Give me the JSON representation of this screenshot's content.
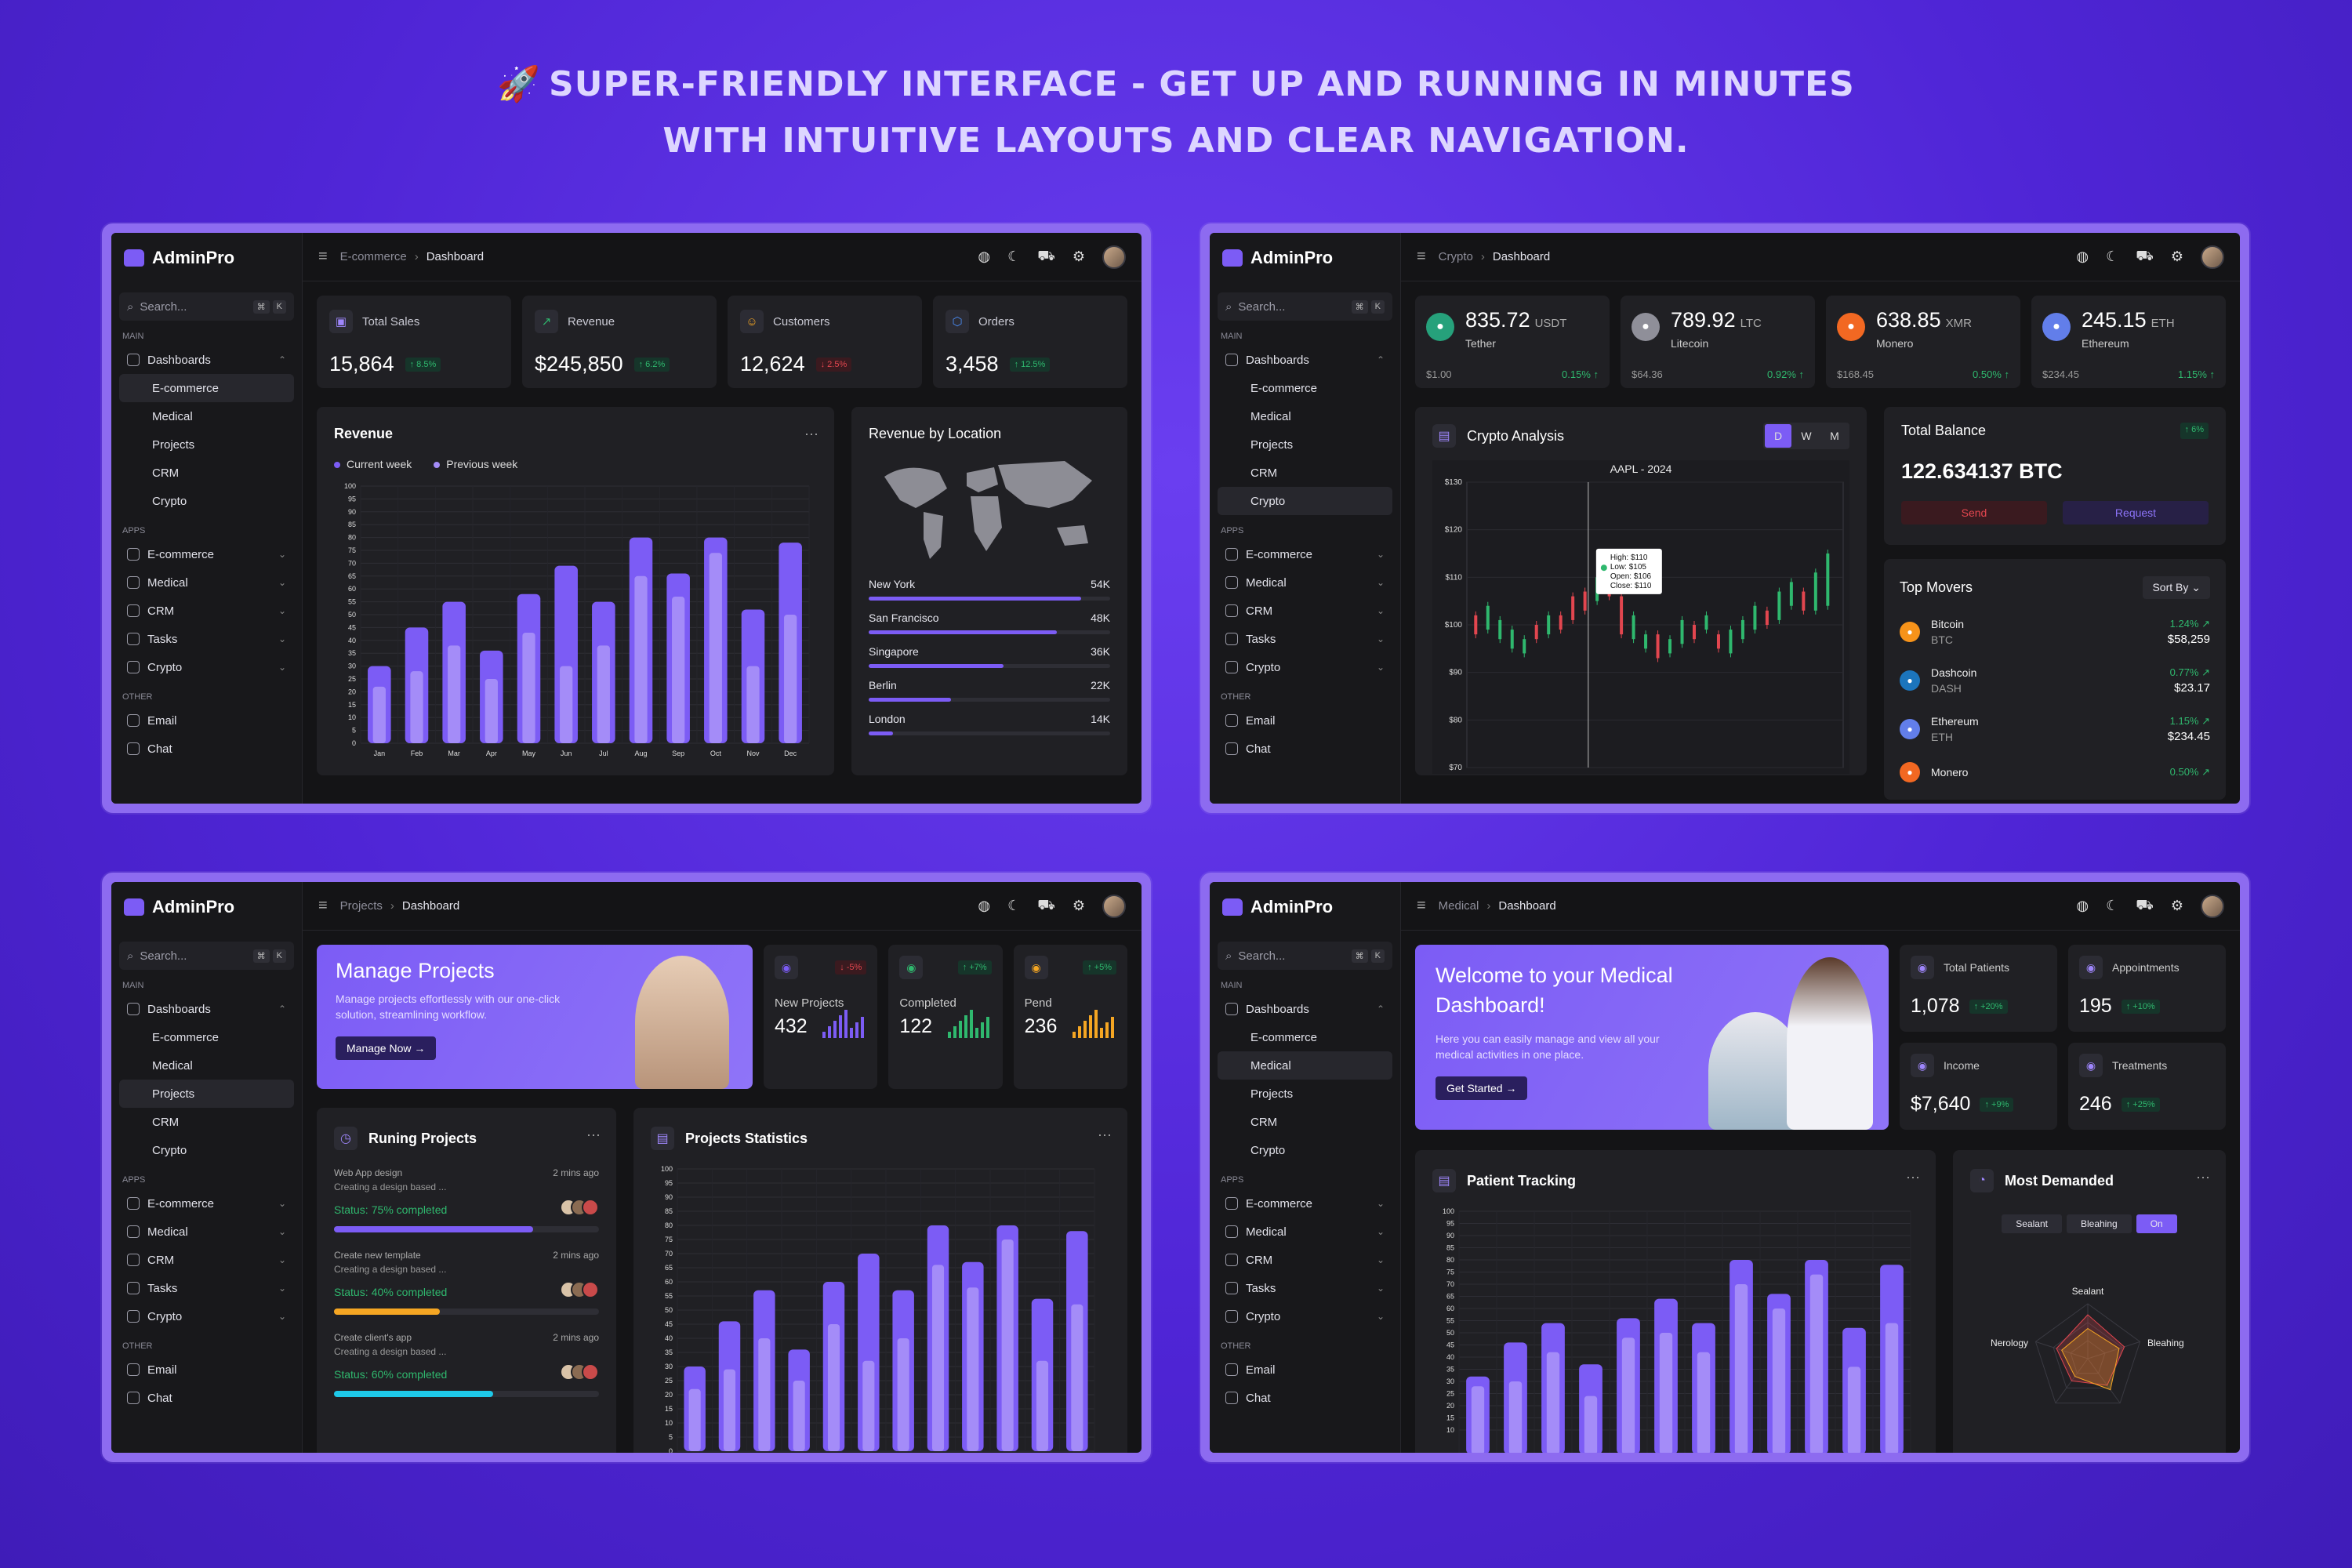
{
  "headline": {
    "line1": "SUPER-FRIENDLY INTERFACE  -  GET UP AND RUNNING IN MINUTES",
    "line2": "WITH INTUITIVE LAYOUTS AND CLEAR NAVIGATION.",
    "icon": "rocket-icon"
  },
  "common": {
    "brand": "AdminPro",
    "search_placeholder": "Search...",
    "kbd1": "⌘",
    "kbd2": "K",
    "sec_main": "MAIN",
    "sec_apps": "APPS",
    "sec_other": "OTHER",
    "dashboards": "Dashboards",
    "sub": [
      "E-commerce",
      "Medical",
      "Projects",
      "CRM",
      "Crypto"
    ],
    "apps": [
      "E-commerce",
      "Medical",
      "CRM",
      "Tasks",
      "Crypto"
    ],
    "other": [
      "Email",
      "Chat"
    ],
    "dashboard_crumb": "Dashboard",
    "colors": {
      "accent": "#7c5cf5",
      "up": "#2fb86e",
      "down": "#e2464f",
      "background": "#141416"
    }
  },
  "ecommerce": {
    "crumb": "E-commerce",
    "stats": [
      {
        "label": "Total Sales",
        "value": "15,864",
        "delta": "↑ 8.5%",
        "dir": "up"
      },
      {
        "label": "Revenue",
        "value": "$245,850",
        "delta": "↑ 6.2%",
        "dir": "up"
      },
      {
        "label": "Customers",
        "value": "12,624",
        "delta": "↓ 2.5%",
        "dir": "dn"
      },
      {
        "label": "Orders",
        "value": "3,458",
        "delta": "↑ 12.5%",
        "dir": "up"
      }
    ],
    "revenue_title": "Revenue",
    "legend_current": "Current week",
    "legend_previous": "Previous week",
    "location_title": "Revenue by Location",
    "locations": [
      {
        "name": "New York",
        "value": "54K",
        "pct": 0.88
      },
      {
        "name": "San Francisco",
        "value": "48K",
        "pct": 0.78
      },
      {
        "name": "Singapore",
        "value": "36K",
        "pct": 0.56
      },
      {
        "name": "Berlin",
        "value": "22K",
        "pct": 0.34
      },
      {
        "name": "London",
        "value": "14K",
        "pct": 0.1
      }
    ]
  },
  "crypto": {
    "crumb": "Crypto",
    "coins": [
      {
        "price": "835.72",
        "unit": "USDT",
        "name": "Tether",
        "low": "$1.00",
        "change": "0.15% ↑",
        "color": "#26a17b",
        "icon": "tether-icon"
      },
      {
        "price": "789.92",
        "unit": "LTC",
        "name": "Litecoin",
        "low": "$64.36",
        "change": "0.92% ↑",
        "color": "#8f8f99",
        "icon": "litecoin-icon"
      },
      {
        "price": "638.85",
        "unit": "XMR",
        "name": "Monero",
        "low": "$168.45",
        "change": "0.50% ↑",
        "color": "#f26822",
        "icon": "monero-icon"
      },
      {
        "price": "245.15",
        "unit": "ETH",
        "name": "Ethereum",
        "low": "$234.45",
        "change": "1.15% ↑",
        "color": "#627eea",
        "icon": "ethereum-icon"
      }
    ],
    "analysis_title": "Crypto Analysis",
    "seg": [
      "D",
      "W",
      "M"
    ],
    "chart_title": "AAPL - 2024",
    "tooltip": [
      "High: $110",
      "Low: $105",
      "Open: $106",
      "Close: $110"
    ],
    "balance_title": "Total Balance",
    "balance_delta": "↑ 6%",
    "balance_value": "122.634137 BTC",
    "send": "Send",
    "request": "Request",
    "movers_title": "Top Movers",
    "sort": "Sort By",
    "movers": [
      {
        "name": "Bitcoin",
        "sym": "BTC",
        "change": "1.24% ↗",
        "price": "$58,259",
        "color": "#f7931a"
      },
      {
        "name": "Dashcoin",
        "sym": "DASH",
        "change": "0.77% ↗",
        "price": "$23.17",
        "color": "#1c75bc"
      },
      {
        "name": "Ethereum",
        "sym": "ETH",
        "change": "1.15% ↗",
        "price": "$234.45",
        "color": "#627eea"
      },
      {
        "name": "Monero",
        "sym": "",
        "change": "0.50% ↗",
        "price": "",
        "color": "#f26822"
      }
    ]
  },
  "projects": {
    "crumb": "Projects",
    "hero_title": "Manage Projects",
    "hero_text": "Manage projects effortlessly with our  one-click solution, streamlining workflow.",
    "hero_btn": "Manage Now",
    "minis": [
      {
        "label": "New Projects",
        "value": "432",
        "delta": "↓ -5%",
        "dir": "dn",
        "color": "#7c5cf5"
      },
      {
        "label": "Completed",
        "value": "122",
        "delta": "↑ +7%",
        "dir": "up",
        "color": "#2fb86e"
      },
      {
        "label": "Pend",
        "value": "236",
        "delta": "↑ +5%",
        "dir": "up",
        "color": "#f5a623"
      }
    ],
    "running_title": "Runing Projects",
    "running": [
      {
        "title": "Web App design",
        "time": "2 mins ago",
        "desc": "Creating a design based ...",
        "status": "75% completed",
        "pct": 0.75,
        "color": "#7c5cf5"
      },
      {
        "title": "Create new template",
        "time": "2 mins ago",
        "desc": "Creating a design based ...",
        "status": "40% completed",
        "pct": 0.4,
        "color": "#f5a623"
      },
      {
        "title": "Create client's app",
        "time": "2 mins ago",
        "desc": "Creating a design based ...",
        "status": "60% completed",
        "pct": 0.6,
        "color": "#1ec8e8"
      }
    ],
    "status_label": "Status:",
    "stats_title": "Projects Statistics"
  },
  "medical": {
    "crumb": "Medical",
    "hero_title": "Welcome to your Medical Dashboard!",
    "hero_text": "Here you can easily manage and view all your medical activities in one place.",
    "hero_btn": "Get Started",
    "stats": [
      {
        "label": "Total Patients",
        "value": "1,078",
        "delta": "↑ +20%"
      },
      {
        "label": "Appointments",
        "value": "195",
        "delta": "↑ +10%"
      },
      {
        "label": "Income",
        "value": "$7,640",
        "delta": "↑ +9%"
      },
      {
        "label": "Treatments",
        "value": "246",
        "delta": "↑ +25%"
      }
    ],
    "tracking_title": "Patient Tracking",
    "demand_title": "Most Demanded",
    "demand_tabs": [
      "Sealant",
      "Bleahing",
      "On"
    ],
    "radar_labels": [
      "Sealant",
      "Bleahing",
      "Nerology"
    ]
  },
  "chart_data": [
    {
      "type": "bar",
      "title": "Revenue",
      "categories": [
        "Jan",
        "Feb",
        "Mar",
        "Apr",
        "May",
        "Jun",
        "Jul",
        "Aug",
        "Sep",
        "Oct",
        "Nov",
        "Dec"
      ],
      "series": [
        {
          "name": "Current week",
          "values": [
            30,
            45,
            55,
            36,
            58,
            69,
            55,
            80,
            66,
            80,
            52,
            78
          ]
        },
        {
          "name": "Previous week",
          "values": [
            22,
            28,
            38,
            25,
            43,
            30,
            38,
            65,
            57,
            74,
            30,
            50
          ]
        }
      ],
      "ylim": [
        0,
        100
      ],
      "yticks": [
        0,
        5,
        10,
        15,
        20,
        25,
        30,
        35,
        40,
        45,
        50,
        55,
        60,
        65,
        70,
        75,
        80,
        85,
        90,
        95,
        100
      ]
    },
    {
      "type": "candlestick",
      "title": "AAPL - 2024",
      "yticks": [
        "$70",
        "$80",
        "$90",
        "$100",
        "$110",
        "$120",
        "$130"
      ],
      "ylim": [
        70,
        130
      ],
      "candles": [
        [
          102,
          98
        ],
        [
          99,
          104
        ],
        [
          97,
          101
        ],
        [
          95,
          99
        ],
        [
          94,
          97
        ],
        [
          100,
          97
        ],
        [
          98,
          102
        ],
        [
          102,
          99
        ],
        [
          106,
          101
        ],
        [
          107,
          103
        ],
        [
          105,
          110
        ],
        [
          110,
          106
        ],
        [
          106,
          98
        ],
        [
          97,
          102
        ],
        [
          95,
          98
        ],
        [
          98,
          93
        ],
        [
          94,
          97
        ],
        [
          96,
          101
        ],
        [
          100,
          97
        ],
        [
          99,
          102
        ],
        [
          98,
          95
        ],
        [
          94,
          99
        ],
        [
          97,
          101
        ],
        [
          99,
          104
        ],
        [
          103,
          100
        ],
        [
          101,
          107
        ],
        [
          104,
          109
        ],
        [
          107,
          103
        ],
        [
          103,
          111
        ],
        [
          104,
          115
        ]
      ]
    },
    {
      "type": "bar",
      "title": "Projects Statistics",
      "series": [
        {
          "name": "",
          "values": [
            30,
            46,
            57,
            36,
            60,
            70,
            57,
            80,
            67,
            80,
            54,
            78
          ]
        },
        {
          "name": "",
          "values": [
            22,
            29,
            40,
            25,
            45,
            32,
            40,
            66,
            58,
            75,
            32,
            52
          ]
        }
      ],
      "ylim": [
        0,
        100
      ],
      "yticks": [
        0,
        5,
        10,
        15,
        20,
        25,
        30,
        35,
        40,
        45,
        50,
        55,
        60,
        65,
        70,
        75,
        80,
        85,
        90,
        95,
        100
      ]
    },
    {
      "type": "bar",
      "title": "Patient Tracking",
      "series": [
        {
          "name": "",
          "values": [
            32,
            46,
            54,
            37,
            56,
            64,
            54,
            80,
            66,
            80,
            52,
            78
          ]
        },
        {
          "name": "",
          "values": [
            28,
            30,
            42,
            24,
            48,
            50,
            42,
            70,
            60,
            74,
            36,
            54
          ]
        }
      ],
      "ylim": [
        0,
        100
      ],
      "yticks": [
        10,
        15,
        20,
        25,
        30,
        35,
        40,
        45,
        50,
        55,
        60,
        65,
        70,
        75,
        80,
        85,
        90,
        95,
        100
      ]
    },
    {
      "type": "radar",
      "title": "Most Demanded",
      "axes": [
        "Sealant",
        "Bleahing",
        "",
        "",
        "Nerology"
      ],
      "series": [
        {
          "name": "",
          "values": [
            0.8,
            0.7,
            0.6,
            0.5,
            0.6
          ],
          "color": "#e2464f"
        },
        {
          "name": "",
          "values": [
            0.55,
            0.6,
            0.7,
            0.4,
            0.5
          ],
          "color": "#f5a623"
        }
      ]
    }
  ]
}
